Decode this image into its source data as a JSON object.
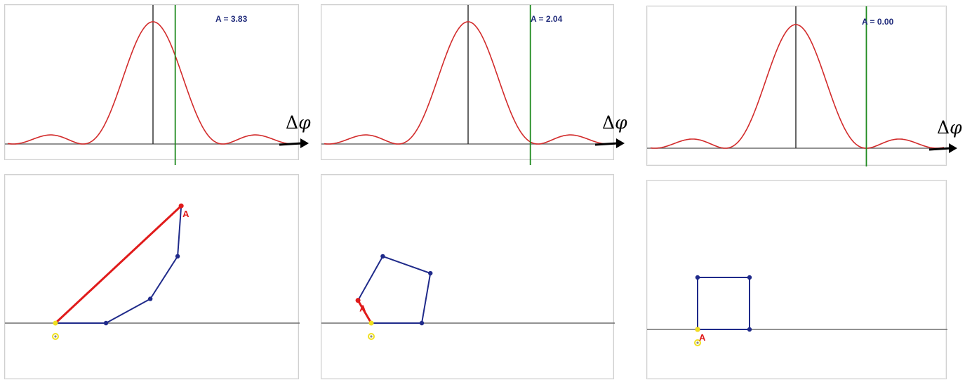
{
  "colors": {
    "curve": "#d22b2b",
    "axis": "#6e6e6e",
    "zero_line": "#333333",
    "phase_line": "#1f8a1f",
    "amplitude_text": "#1f2a7a",
    "polygon": "#1f2a8a",
    "resultant": "#e01b1b",
    "origin": "#f0e020"
  },
  "axis_label": {
    "symbol": "Δ",
    "variable": "φ"
  },
  "panels": [
    {
      "amplitude_label": "A = 3.83",
      "phase": 0.5,
      "point_label": "A"
    },
    {
      "amplitude_label": "A = 2.04",
      "phase": 1.4,
      "point_label": "A"
    },
    {
      "amplitude_label": "A = 0.00",
      "phase": 1.5708,
      "point_label": "A"
    }
  ]
}
